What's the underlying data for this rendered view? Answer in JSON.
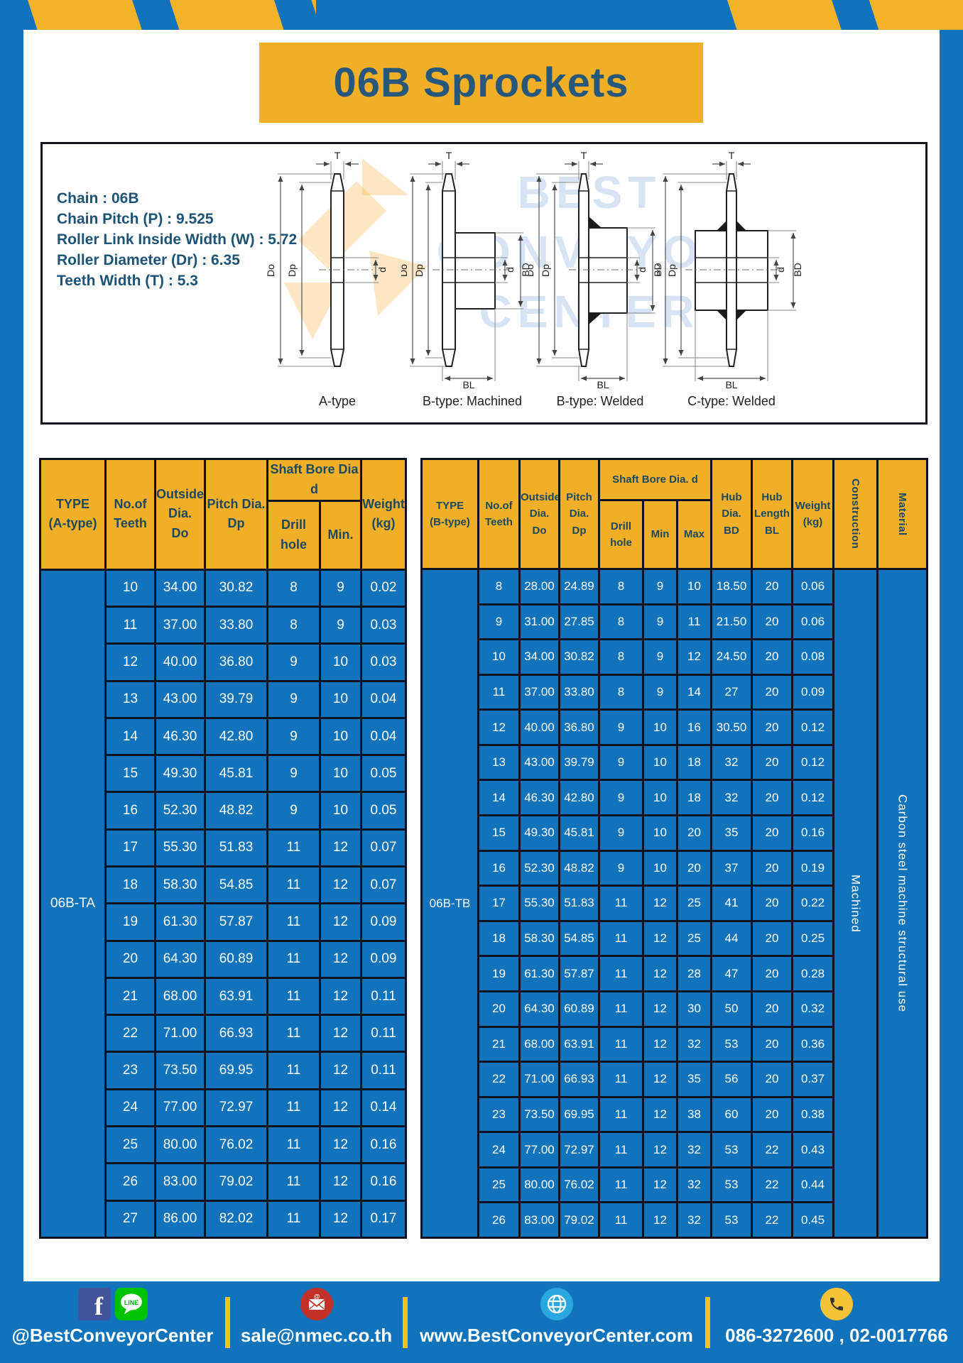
{
  "page": {
    "title": "06B Sprockets"
  },
  "specs": {
    "lines": [
      "Chain : 06B",
      "Chain Pitch (P) : 9.525",
      "Roller Link Inside Width (W) : 5.72",
      "Roller Diameter (Dr) : 6.35",
      "Teeth Width (T) : 5.3"
    ]
  },
  "diagram": {
    "watermark_lines": [
      "BEST",
      "CONVEYOR",
      "CENTER"
    ],
    "captions": [
      "A-type",
      "B-type: Machined",
      "B-type: Welded",
      "C-type: Welded"
    ],
    "dims": {
      "t": "T",
      "do": "Do",
      "dp": "Dp",
      "d": "d",
      "bd": "BD",
      "bl": "BL"
    }
  },
  "table_a": {
    "headers": {
      "type": "TYPE\n(A-type)",
      "teeth": "No.of\nTeeth",
      "outside": "Outside\nDia.\nDo",
      "pitch": "Pitch Dia.\nDp",
      "shaft": "Shaft Bore Dia d",
      "drill": "Drill hole",
      "min": "Min.",
      "weight": "Weight\n(kg)"
    },
    "type_label": "06B-TA",
    "rows": [
      [
        "10",
        "34.00",
        "30.82",
        "8",
        "9",
        "0.02"
      ],
      [
        "11",
        "37.00",
        "33.80",
        "8",
        "9",
        "0.03"
      ],
      [
        "12",
        "40.00",
        "36.80",
        "9",
        "10",
        "0.03"
      ],
      [
        "13",
        "43.00",
        "39.79",
        "9",
        "10",
        "0.04"
      ],
      [
        "14",
        "46.30",
        "42.80",
        "9",
        "10",
        "0.04"
      ],
      [
        "15",
        "49.30",
        "45.81",
        "9",
        "10",
        "0.05"
      ],
      [
        "16",
        "52.30",
        "48.82",
        "9",
        "10",
        "0.05"
      ],
      [
        "17",
        "55.30",
        "51.83",
        "11",
        "12",
        "0.07"
      ],
      [
        "18",
        "58.30",
        "54.85",
        "11",
        "12",
        "0.07"
      ],
      [
        "19",
        "61.30",
        "57.87",
        "11",
        "12",
        "0.09"
      ],
      [
        "20",
        "64.30",
        "60.89",
        "11",
        "12",
        "0.09"
      ],
      [
        "21",
        "68.00",
        "63.91",
        "11",
        "12",
        "0.11"
      ],
      [
        "22",
        "71.00",
        "66.93",
        "11",
        "12",
        "0.11"
      ],
      [
        "23",
        "73.50",
        "69.95",
        "11",
        "12",
        "0.11"
      ],
      [
        "24",
        "77.00",
        "72.97",
        "11",
        "12",
        "0.14"
      ],
      [
        "25",
        "80.00",
        "76.02",
        "11",
        "12",
        "0.16"
      ],
      [
        "26",
        "83.00",
        "79.02",
        "11",
        "12",
        "0.16"
      ],
      [
        "27",
        "86.00",
        "82.02",
        "11",
        "12",
        "0.17"
      ]
    ]
  },
  "table_b": {
    "headers": {
      "type": "TYPE\n(B-type)",
      "teeth": "No.of\nTeeth",
      "outside": "Outside\nDia.\nDo",
      "pitch": "Pitch\nDia.\nDp",
      "shaft": "Shaft Bore Dia. d",
      "drill": "Drill hole",
      "min": "Min",
      "max": "Max",
      "bd": "Hub\nDia.\nBD",
      "bl": "Hub\nLength\nBL",
      "weight": "Weight\n(kg)",
      "construction": "Construction",
      "material": "Material"
    },
    "type_label": "06B-TB",
    "construction_value": "Machined",
    "material_value": "Carbon steel machine structural use",
    "rows": [
      [
        "8",
        "28.00",
        "24.89",
        "8",
        "9",
        "10",
        "18.50",
        "20",
        "0.06"
      ],
      [
        "9",
        "31.00",
        "27.85",
        "8",
        "9",
        "11",
        "21.50",
        "20",
        "0.06"
      ],
      [
        "10",
        "34.00",
        "30.82",
        "8",
        "9",
        "12",
        "24.50",
        "20",
        "0.08"
      ],
      [
        "11",
        "37.00",
        "33.80",
        "8",
        "9",
        "14",
        "27",
        "20",
        "0.09"
      ],
      [
        "12",
        "40.00",
        "36.80",
        "9",
        "10",
        "16",
        "30.50",
        "20",
        "0.12"
      ],
      [
        "13",
        "43.00",
        "39.79",
        "9",
        "10",
        "18",
        "32",
        "20",
        "0.12"
      ],
      [
        "14",
        "46.30",
        "42.80",
        "9",
        "10",
        "18",
        "32",
        "20",
        "0.12"
      ],
      [
        "15",
        "49.30",
        "45.81",
        "9",
        "10",
        "20",
        "35",
        "20",
        "0.16"
      ],
      [
        "16",
        "52.30",
        "48.82",
        "9",
        "10",
        "20",
        "37",
        "20",
        "0.19"
      ],
      [
        "17",
        "55.30",
        "51.83",
        "11",
        "12",
        "25",
        "41",
        "20",
        "0.22"
      ],
      [
        "18",
        "58.30",
        "54.85",
        "11",
        "12",
        "25",
        "44",
        "20",
        "0.25"
      ],
      [
        "19",
        "61.30",
        "57.87",
        "11",
        "12",
        "28",
        "47",
        "20",
        "0.28"
      ],
      [
        "20",
        "64.30",
        "60.89",
        "11",
        "12",
        "30",
        "50",
        "20",
        "0.32"
      ],
      [
        "21",
        "68.00",
        "63.91",
        "11",
        "12",
        "32",
        "53",
        "20",
        "0.36"
      ],
      [
        "22",
        "71.00",
        "66.93",
        "11",
        "12",
        "35",
        "56",
        "20",
        "0.37"
      ],
      [
        "23",
        "73.50",
        "69.95",
        "11",
        "12",
        "38",
        "60",
        "20",
        "0.38"
      ],
      [
        "24",
        "77.00",
        "72.97",
        "11",
        "12",
        "32",
        "53",
        "22",
        "0.43"
      ],
      [
        "25",
        "80.00",
        "76.02",
        "11",
        "12",
        "32",
        "53",
        "22",
        "0.44"
      ],
      [
        "26",
        "83.00",
        "79.02",
        "11",
        "12",
        "32",
        "53",
        "22",
        "0.45"
      ]
    ]
  },
  "footer": {
    "social_handle": "@BestConveyorCenter",
    "line_label": "LINE",
    "email": "sale@nmec.co.th",
    "website": "www.BestConveyorCenter.com",
    "phone": "086-3272600 , 02-0017766"
  },
  "colors": {
    "frame_blue": "#1273BD",
    "cell_blue": "#1173BC",
    "accent_yellow": "#F1AF27",
    "hazard_yellow": "#F2B32A",
    "header_text": "#1B4961",
    "title_text": "#27587B"
  }
}
